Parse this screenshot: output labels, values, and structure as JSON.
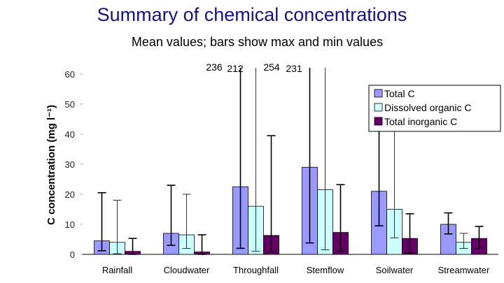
{
  "title": "Summary of chemical concentrations",
  "subtitle": "Mean values; bars show max and min values",
  "chart_data": {
    "type": "bar",
    "ylabel": "C concentration (mg l⁻¹)",
    "ylim": [
      0,
      60
    ],
    "yticks": [
      0,
      10,
      20,
      30,
      40,
      50,
      60
    ],
    "categories": [
      "Rainfall",
      "Cloudwater",
      "Throughfall",
      "Stemflow",
      "Soilwater",
      "Streamwater"
    ],
    "series": [
      {
        "name": "Total C",
        "color": "#9999ff",
        "values": [
          4.5,
          7.0,
          22.5,
          29.0,
          21.0,
          10.0
        ],
        "max": [
          20.5,
          23.0,
          236,
          254,
          50.5,
          13.8
        ],
        "min": [
          1.2,
          3.0,
          2.0,
          3.8,
          9.5,
          6.8
        ]
      },
      {
        "name": "Dissolved organic C",
        "color": "#ccffff",
        "values": [
          4.0,
          6.5,
          16.0,
          21.5,
          15.0,
          4.0
        ],
        "max": [
          18.0,
          20.0,
          212,
          231,
          47.5,
          7.0
        ],
        "min": [
          0.2,
          2.0,
          1.0,
          1.5,
          5.5,
          2.0
        ]
      },
      {
        "name": "Total inorganic C",
        "color": "#660066",
        "values": [
          1.0,
          0.8,
          6.3,
          7.3,
          5.3,
          5.3
        ],
        "max": [
          5.3,
          6.5,
          39.5,
          23.2,
          13.5,
          9.3
        ],
        "min": [
          0.0,
          0.0,
          1.0,
          1.0,
          0.5,
          2.0
        ]
      }
    ],
    "offscale_labels": [
      "236",
      "212",
      "254",
      "231"
    ],
    "legend_position": "top-right",
    "grid": false
  }
}
